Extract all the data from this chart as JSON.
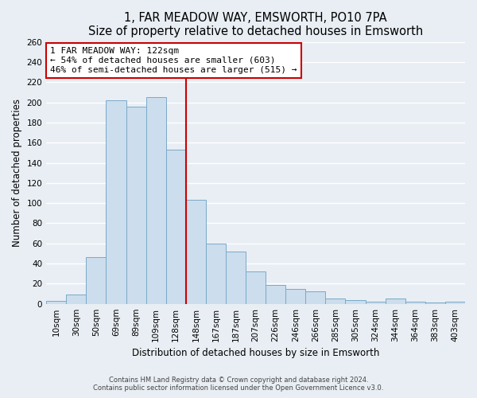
{
  "title": "1, FAR MEADOW WAY, EMSWORTH, PO10 7PA",
  "subtitle": "Size of property relative to detached houses in Emsworth",
  "xlabel": "Distribution of detached houses by size in Emsworth",
  "ylabel": "Number of detached properties",
  "bar_labels": [
    "10sqm",
    "30sqm",
    "50sqm",
    "69sqm",
    "89sqm",
    "109sqm",
    "128sqm",
    "148sqm",
    "167sqm",
    "187sqm",
    "207sqm",
    "226sqm",
    "246sqm",
    "266sqm",
    "285sqm",
    "305sqm",
    "324sqm",
    "344sqm",
    "364sqm",
    "383sqm",
    "403sqm"
  ],
  "bar_values": [
    3,
    9,
    46,
    202,
    196,
    205,
    153,
    103,
    60,
    52,
    32,
    19,
    15,
    12,
    5,
    4,
    2,
    5,
    2,
    1,
    2
  ],
  "bar_color": "#ccdded",
  "bar_edge_color": "#7aaac8",
  "vline_x_index": 6,
  "vline_color": "#cc0000",
  "annotation_title": "1 FAR MEADOW WAY: 122sqm",
  "annotation_line1": "← 54% of detached houses are smaller (603)",
  "annotation_line2": "46% of semi-detached houses are larger (515) →",
  "annotation_box_color": "#ffffff",
  "annotation_box_edge": "#cc0000",
  "ylim": [
    0,
    260
  ],
  "yticks": [
    0,
    20,
    40,
    60,
    80,
    100,
    120,
    140,
    160,
    180,
    200,
    220,
    240,
    260
  ],
  "footer1": "Contains HM Land Registry data © Crown copyright and database right 2024.",
  "footer2": "Contains public sector information licensed under the Open Government Licence v3.0.",
  "bg_color": "#e8eef4",
  "grid_color": "#ffffff",
  "title_fontsize": 10.5,
  "axis_fontsize": 8.5,
  "tick_fontsize": 7.5
}
